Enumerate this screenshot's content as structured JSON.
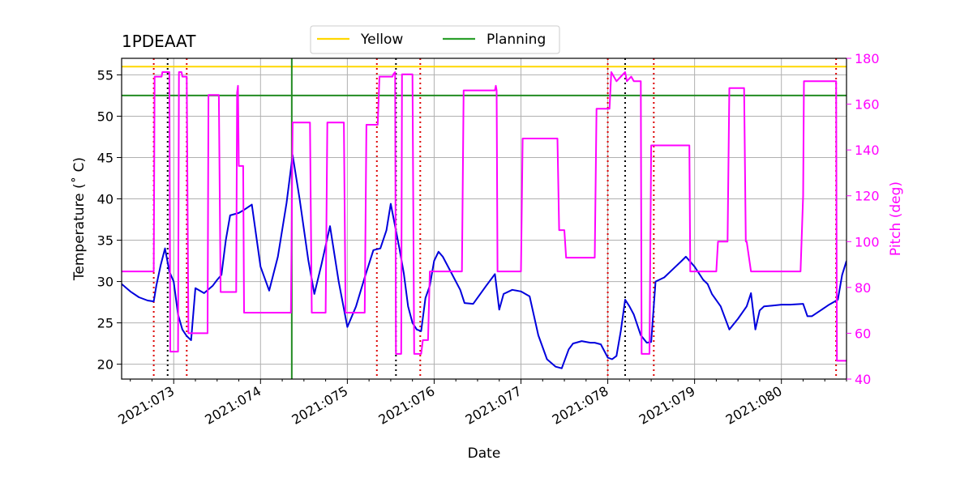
{
  "chart_data": {
    "type": "line",
    "title": "1PDEAAT",
    "xlabel": "Date",
    "ylabel_left": "Temperature ($^\\circ$C)",
    "ylabel_left_display": "Temperature (˚ C)",
    "ylabel_right": "Pitch (deg)",
    "x_unit": "day of year 2021",
    "xlim": [
      72.4,
      80.75
    ],
    "ylim_left": [
      18.2,
      57
    ],
    "ylim_right": [
      40,
      180
    ],
    "grid": true,
    "legend_position": "top-center, above plot",
    "legend": [
      {
        "label": "Yellow",
        "color": "#ffd700"
      },
      {
        "label": "Planning",
        "color": "#2ca02c"
      }
    ],
    "x_ticks": [
      {
        "value": 73,
        "label": "2021:073"
      },
      {
        "value": 74,
        "label": "2021:074"
      },
      {
        "value": 75,
        "label": "2021:075"
      },
      {
        "value": 76,
        "label": "2021:076"
      },
      {
        "value": 77,
        "label": "2021:077"
      },
      {
        "value": 78,
        "label": "2021:078"
      },
      {
        "value": 79,
        "label": "2021:079"
      },
      {
        "value": 80,
        "label": "2021:080"
      }
    ],
    "y_ticks_left": [
      20,
      25,
      30,
      35,
      40,
      45,
      50,
      55
    ],
    "y_ticks_right": [
      40,
      60,
      80,
      100,
      120,
      140,
      160,
      180
    ],
    "limits": {
      "yellow_temperature": 56.0,
      "planning_temperature": 52.5
    },
    "green_vertical_time": 74.36,
    "black_dotted_times": [
      72.93,
      75.56,
      78.2
    ],
    "red_dotted_times": [
      72.77,
      73.15,
      75.34,
      75.84,
      78.0,
      78.53,
      80.63
    ],
    "colors": {
      "temperature": "#0000dd",
      "pitch": "#ff00ff",
      "yellow": "#ffd700",
      "planning": "#228b22",
      "black_markers": "#000000",
      "red_markers": "#dd0000"
    },
    "series": [
      {
        "name": "Temperature",
        "axis": "left",
        "x": [
          72.4,
          72.5,
          72.6,
          72.7,
          72.77,
          72.8,
          72.85,
          72.9,
          72.95,
          73.0,
          73.05,
          73.1,
          73.15,
          73.2,
          73.25,
          73.35,
          73.45,
          73.5,
          73.55,
          73.6,
          73.65,
          73.75,
          73.8,
          73.9,
          74.0,
          74.1,
          74.2,
          74.3,
          74.37,
          74.45,
          74.55,
          74.62,
          74.7,
          74.8,
          74.9,
          75.0,
          75.1,
          75.2,
          75.3,
          75.38,
          75.45,
          75.5,
          75.6,
          75.65,
          75.7,
          75.75,
          75.8,
          75.85,
          75.9,
          75.95,
          76.0,
          76.05,
          76.1,
          76.2,
          76.3,
          76.35,
          76.45,
          76.6,
          76.7,
          76.75,
          76.8,
          76.9,
          77.0,
          77.1,
          77.2,
          77.3,
          77.4,
          77.47,
          77.55,
          77.6,
          77.7,
          77.8,
          77.85,
          77.92,
          78.0,
          78.05,
          78.1,
          78.15,
          78.2,
          78.25,
          78.3,
          78.38,
          78.45,
          78.5,
          78.55,
          78.65,
          78.75,
          78.85,
          78.9,
          79.0,
          79.1,
          79.15,
          79.2,
          79.3,
          79.4,
          79.5,
          79.6,
          79.65,
          79.7,
          79.75,
          79.8,
          79.9,
          80.0,
          80.1,
          80.25,
          80.3,
          80.35,
          80.45,
          80.55,
          80.65,
          80.7,
          80.75
        ],
        "y": [
          29.7,
          28.8,
          28.1,
          27.7,
          27.6,
          29.5,
          32.0,
          34.0,
          31.2,
          30.0,
          26.0,
          24.2,
          23.4,
          22.9,
          29.2,
          28.6,
          29.5,
          30.2,
          30.8,
          35.0,
          38.0,
          38.3,
          38.6,
          39.3,
          31.8,
          28.9,
          33.0,
          39.5,
          45.3,
          40.0,
          32.6,
          28.5,
          32.0,
          36.7,
          30.0,
          24.5,
          27.0,
          30.5,
          33.8,
          34.0,
          36.2,
          39.4,
          34.0,
          31.0,
          27.0,
          25.0,
          24.2,
          24.0,
          28.0,
          29.5,
          32.5,
          33.6,
          33.0,
          31.0,
          29.0,
          27.4,
          27.3,
          29.5,
          30.9,
          26.6,
          28.5,
          29.0,
          28.8,
          28.2,
          23.5,
          20.6,
          19.7,
          19.5,
          21.8,
          22.5,
          22.8,
          22.6,
          22.6,
          22.4,
          20.8,
          20.6,
          21.0,
          24.0,
          27.8,
          27.0,
          26.0,
          23.5,
          22.6,
          22.7,
          30.0,
          30.5,
          31.5,
          32.5,
          33.0,
          31.8,
          30.2,
          29.7,
          28.5,
          27.0,
          24.2,
          25.5,
          27.0,
          28.6,
          24.2,
          26.5,
          27.0,
          27.1,
          27.2,
          27.2,
          27.3,
          25.8,
          25.8,
          26.5,
          27.2,
          27.8,
          30.8,
          32.5
        ]
      },
      {
        "name": "Pitch",
        "axis": "right",
        "x": [
          72.4,
          72.77,
          72.78,
          72.86,
          72.87,
          72.95,
          72.96,
          73.05,
          73.06,
          73.09,
          73.1,
          73.15,
          73.17,
          73.24,
          73.25,
          73.39,
          73.4,
          73.52,
          73.54,
          73.56,
          73.57,
          73.72,
          73.73,
          73.74,
          73.75,
          73.76,
          73.77,
          73.8,
          73.81,
          73.98,
          74.0,
          74.35,
          74.37,
          74.57,
          74.59,
          74.75,
          74.77,
          74.96,
          74.98,
          75.2,
          75.22,
          75.35,
          75.37,
          75.52,
          75.53,
          75.55,
          75.56,
          75.62,
          75.63,
          75.75,
          75.77,
          75.85,
          75.87,
          75.93,
          75.95,
          76.32,
          76.34,
          76.7,
          76.71,
          76.72,
          76.73,
          76.74,
          77.0,
          77.02,
          77.42,
          77.44,
          77.5,
          77.52,
          77.7,
          77.72,
          77.85,
          77.87,
          78.02,
          78.04,
          78.1,
          78.2,
          78.22,
          78.27,
          78.3,
          78.38,
          78.39,
          78.48,
          78.5,
          78.56,
          78.58,
          78.94,
          78.95,
          78.96,
          79.25,
          79.27,
          79.38,
          79.4,
          79.57,
          79.59,
          79.6,
          79.65,
          79.66,
          80.22,
          80.25,
          80.26,
          80.28,
          80.6,
          80.63,
          80.64,
          80.75
        ],
        "y": [
          87,
          87,
          172,
          172,
          174,
          174,
          52,
          52,
          174,
          174,
          172,
          172,
          60,
          60,
          60,
          60,
          164,
          164,
          78,
          78,
          78,
          78,
          165,
          168,
          133,
          133,
          133,
          133,
          69,
          69,
          69,
          69,
          152,
          152,
          69,
          69,
          152,
          152,
          69,
          69,
          151,
          151,
          172,
          172,
          173,
          174,
          51,
          51,
          173,
          173,
          51,
          51,
          57,
          57,
          87,
          87,
          166,
          166,
          168,
          166,
          87,
          87,
          87,
          145,
          145,
          105,
          105,
          93,
          93,
          93,
          93,
          158,
          158,
          174,
          170,
          174,
          170,
          172,
          170,
          170,
          51,
          51,
          142,
          142,
          142,
          142,
          87,
          87,
          87,
          100,
          100,
          167,
          167,
          100,
          100,
          87,
          87,
          87,
          120,
          170,
          170,
          170,
          170,
          48,
          48
        ]
      }
    ]
  }
}
